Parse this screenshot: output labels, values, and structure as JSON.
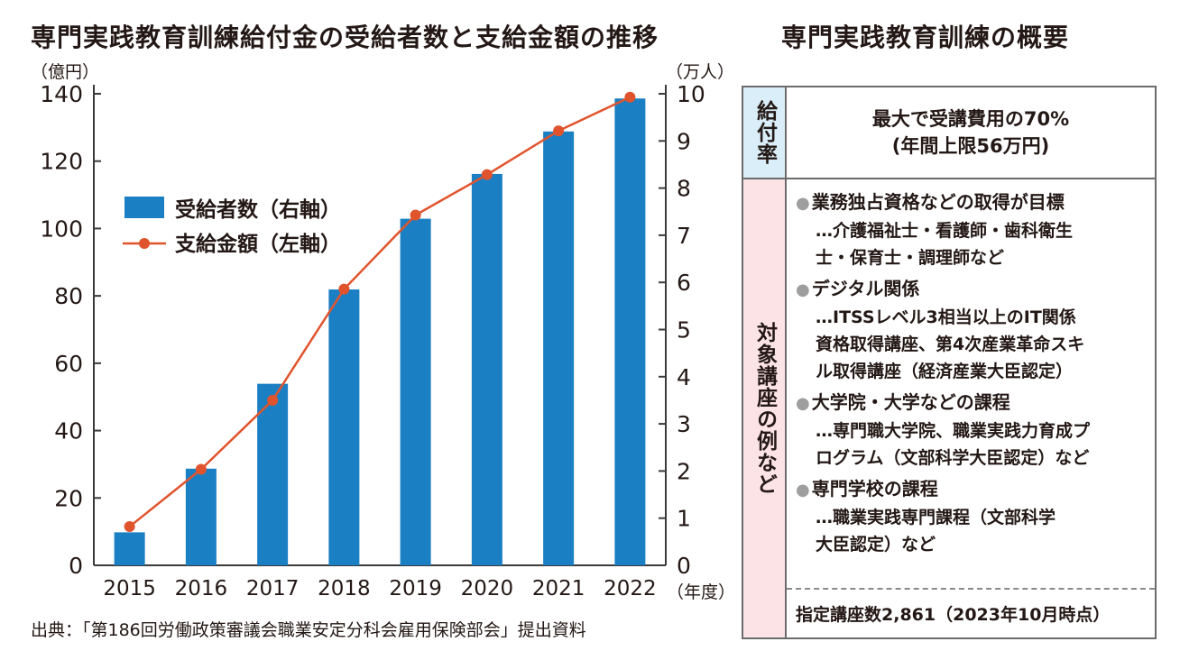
{
  "chart_title": "専門実践教育訓練給付金の受給者数と支給金額の推移",
  "source": "出典：「第186回労働政策審議会職業安定分科会雇用保険部会」提出資料",
  "chart_data": {
    "type": "bar+line",
    "categories": [
      "2015",
      "2016",
      "2017",
      "2018",
      "2019",
      "2020",
      "2021",
      "2022"
    ],
    "series": [
      {
        "name": "受給者数（右軸）",
        "type": "bar",
        "axis": "right",
        "values": [
          0.7,
          2.05,
          3.85,
          5.85,
          7.35,
          8.3,
          9.2,
          9.9
        ]
      },
      {
        "name": "支給金額（左軸）",
        "type": "line",
        "axis": "left",
        "values": [
          11.5,
          28.5,
          49,
          82,
          104,
          116,
          129,
          139
        ]
      }
    ],
    "left_axis": {
      "unit": "（億円）",
      "min": 0,
      "max": 140,
      "ticks": [
        "0",
        "20",
        "40",
        "60",
        "80",
        "100",
        "120",
        "140"
      ]
    },
    "right_axis": {
      "unit": "（万人）",
      "min": 0,
      "max": 10,
      "ticks": [
        "0",
        "1",
        "2",
        "3",
        "4",
        "5",
        "6",
        "7",
        "8",
        "9",
        "10"
      ]
    },
    "x_unit": "（年度）",
    "legend_position": "upper-left",
    "colors": {
      "bar": "#1b7fc4",
      "line": "#e0542d",
      "axis": "#3a3a3a"
    }
  },
  "panel": {
    "title": "専門実践教育訓練の概要",
    "rate_header": "給付率",
    "rate_lines": [
      "最大で受講費用の70%",
      "(年間上限56万円)"
    ],
    "examples_header": "対象講座の例など",
    "bullet_icon": "●",
    "items": [
      {
        "title": "業務独占資格などの取得が目標",
        "detail_lines": [
          "…介護福祉士・看護師・歯科衛生",
          "士・保育士・調理師など"
        ]
      },
      {
        "title": "デジタル関係",
        "detail_lines": [
          "…ITSSレベル3相当以上のIT関係",
          "資格取得講座、第4次産業革命スキ",
          "ル取得講座（経済産業大臣認定）"
        ]
      },
      {
        "title": "大学院・大学などの課程",
        "detail_lines": [
          "…専門職大学院、職業実践力育成プ",
          "ログラム（文部科学大臣認定）など"
        ]
      },
      {
        "title": "専門学校の課程",
        "detail_lines": [
          "…職業実践専門課程（文部科学",
          "大臣認定）など"
        ]
      }
    ],
    "footer": "指定講座数2,861（2023年10月時点）"
  }
}
